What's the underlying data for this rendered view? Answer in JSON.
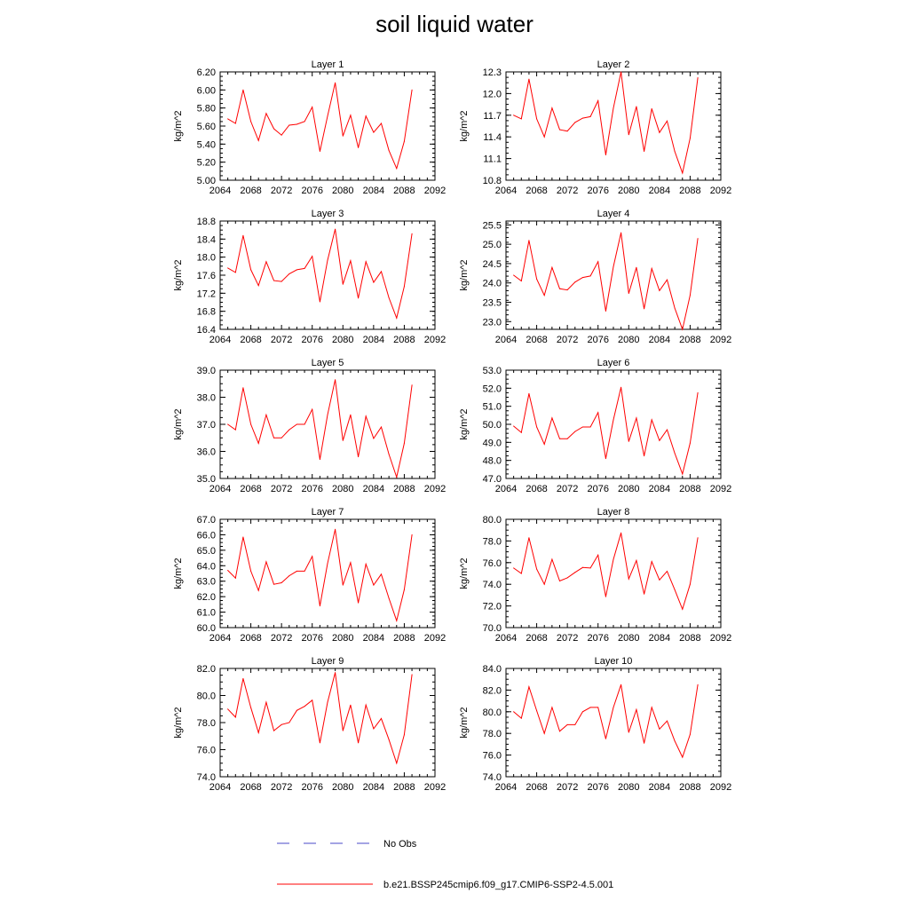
{
  "title": "soil liquid water",
  "legend": {
    "no_obs_label": "No Obs",
    "no_obs_color": "#4a4ac8",
    "model_label": "b.e21.BSSP245cmip6.f09_g17.CMIP6-SSP2-4.5.001",
    "model_color": "#ff0000"
  },
  "chart_data": [
    {
      "type": "line",
      "title": "Layer 1",
      "ylabel": "kg/m^2",
      "xlim": [
        2064,
        2092
      ],
      "xticks": [
        "2064",
        "2068",
        "2072",
        "2076",
        "2080",
        "2084",
        "2088",
        "2092"
      ],
      "ylim": [
        5.0,
        6.2
      ],
      "yticks": [
        "5.00",
        "5.20",
        "5.40",
        "5.60",
        "5.80",
        "6.00",
        "6.20"
      ],
      "x": [
        2065,
        2066,
        2067,
        2068,
        2069,
        2070,
        2071,
        2072,
        2073,
        2074,
        2075,
        2076,
        2077,
        2078,
        2079,
        2080,
        2081,
        2082,
        2083,
        2084,
        2085,
        2086,
        2087,
        2088,
        2089
      ],
      "series": [
        {
          "name": "b.e21.BSSP245cmip6.f09_g17.CMIP6-SSP2-4.5.001",
          "values": [
            5.68,
            5.63,
            6.0,
            5.65,
            5.44,
            5.74,
            5.57,
            5.5,
            5.61,
            5.62,
            5.65,
            5.81,
            5.32,
            5.71,
            6.08,
            5.49,
            5.72,
            5.36,
            5.71,
            5.53,
            5.63,
            5.33,
            5.13,
            5.43,
            6.0
          ]
        }
      ]
    },
    {
      "type": "line",
      "title": "Layer 2",
      "ylabel": "kg/m^2",
      "xlim": [
        2064,
        2092
      ],
      "xticks": [
        "2064",
        "2068",
        "2072",
        "2076",
        "2080",
        "2084",
        "2088",
        "2092"
      ],
      "ylim": [
        10.8,
        12.3
      ],
      "yticks": [
        "10.8",
        "11.1",
        "11.4",
        "11.7",
        "12.0",
        "12.3"
      ],
      "x": [
        2065,
        2066,
        2067,
        2068,
        2069,
        2070,
        2071,
        2072,
        2073,
        2074,
        2075,
        2076,
        2077,
        2078,
        2079,
        2080,
        2081,
        2082,
        2083,
        2084,
        2085,
        2086,
        2087,
        2088,
        2089
      ],
      "series": [
        {
          "name": "b.e21.BSSP245cmip6.f09_g17.CMIP6-SSP2-4.5.001",
          "values": [
            11.7,
            11.65,
            12.2,
            11.65,
            11.4,
            11.8,
            11.5,
            11.48,
            11.6,
            11.66,
            11.68,
            11.9,
            11.15,
            11.8,
            12.3,
            11.43,
            11.82,
            11.2,
            11.79,
            11.46,
            11.62,
            11.2,
            10.9,
            11.38,
            12.22
          ]
        }
      ]
    },
    {
      "type": "line",
      "title": "Layer 3",
      "ylabel": "kg/m^2",
      "xlim": [
        2064,
        2092
      ],
      "xticks": [
        "2064",
        "2068",
        "2072",
        "2076",
        "2080",
        "2084",
        "2088",
        "2092"
      ],
      "ylim": [
        16.4,
        18.8
      ],
      "yticks": [
        "16.4",
        "16.8",
        "17.2",
        "17.6",
        "18.0",
        "18.4",
        "18.8"
      ],
      "x": [
        2065,
        2066,
        2067,
        2068,
        2069,
        2070,
        2071,
        2072,
        2073,
        2074,
        2075,
        2076,
        2077,
        2078,
        2079,
        2080,
        2081,
        2082,
        2083,
        2084,
        2085,
        2086,
        2087,
        2088,
        2089
      ],
      "series": [
        {
          "name": "b.e21.BSSP245cmip6.f09_g17.CMIP6-SSP2-4.5.001",
          "values": [
            17.76,
            17.66,
            18.48,
            17.72,
            17.37,
            17.9,
            17.48,
            17.46,
            17.63,
            17.72,
            17.75,
            18.02,
            17.01,
            17.93,
            18.62,
            17.4,
            17.92,
            17.09,
            17.9,
            17.44,
            17.68,
            17.1,
            16.65,
            17.35,
            18.52
          ]
        }
      ]
    },
    {
      "type": "line",
      "title": "Layer 4",
      "ylabel": "kg/m^2",
      "xlim": [
        2064,
        2092
      ],
      "xticks": [
        "2064",
        "2068",
        "2072",
        "2076",
        "2080",
        "2084",
        "2088",
        "2092"
      ],
      "ylim": [
        22.8,
        25.6
      ],
      "yticks": [
        "23.0",
        "23.5",
        "24.0",
        "24.5",
        "25.0",
        "25.5"
      ],
      "x": [
        2065,
        2066,
        2067,
        2068,
        2069,
        2070,
        2071,
        2072,
        2073,
        2074,
        2075,
        2076,
        2077,
        2078,
        2079,
        2080,
        2081,
        2082,
        2083,
        2084,
        2085,
        2086,
        2087,
        2088,
        2089
      ],
      "series": [
        {
          "name": "b.e21.BSSP245cmip6.f09_g17.CMIP6-SSP2-4.5.001",
          "values": [
            24.2,
            24.05,
            25.1,
            24.1,
            23.68,
            24.4,
            23.85,
            23.82,
            24.02,
            24.14,
            24.18,
            24.55,
            23.27,
            24.42,
            25.3,
            23.73,
            24.4,
            23.33,
            24.37,
            23.8,
            24.08,
            23.35,
            22.8,
            23.68,
            25.15
          ]
        }
      ]
    },
    {
      "type": "line",
      "title": "Layer 5",
      "ylabel": "kg/m^2",
      "xlim": [
        2064,
        2092
      ],
      "xticks": [
        "2064",
        "2068",
        "2072",
        "2076",
        "2080",
        "2084",
        "2088",
        "2092"
      ],
      "ylim": [
        35.0,
        39.0
      ],
      "yticks": [
        "35.0",
        "36.0",
        "37.0",
        "38.0",
        "39.0"
      ],
      "x": [
        2065,
        2066,
        2067,
        2068,
        2069,
        2070,
        2071,
        2072,
        2073,
        2074,
        2075,
        2076,
        2077,
        2078,
        2079,
        2080,
        2081,
        2082,
        2083,
        2084,
        2085,
        2086,
        2087,
        2088,
        2089
      ],
      "series": [
        {
          "name": "b.e21.BSSP245cmip6.f09_g17.CMIP6-SSP2-4.5.001",
          "values": [
            37.0,
            36.8,
            38.35,
            37.0,
            36.3,
            37.35,
            36.5,
            36.5,
            36.8,
            37.0,
            37.0,
            37.55,
            35.7,
            37.35,
            38.65,
            36.4,
            37.35,
            35.8,
            37.3,
            36.48,
            36.9,
            35.9,
            35.05,
            36.3,
            38.45
          ]
        }
      ]
    },
    {
      "type": "line",
      "title": "Layer 6",
      "ylabel": "kg/m^2",
      "xlim": [
        2064,
        2092
      ],
      "xticks": [
        "2064",
        "2068",
        "2072",
        "2076",
        "2080",
        "2084",
        "2088",
        "2092"
      ],
      "ylim": [
        47.0,
        53.0
      ],
      "yticks": [
        "47.0",
        "48.0",
        "49.0",
        "50.0",
        "51.0",
        "52.0",
        "53.0"
      ],
      "x": [
        2065,
        2066,
        2067,
        2068,
        2069,
        2070,
        2071,
        2072,
        2073,
        2074,
        2075,
        2076,
        2077,
        2078,
        2079,
        2080,
        2081,
        2082,
        2083,
        2084,
        2085,
        2086,
        2087,
        2088,
        2089
      ],
      "series": [
        {
          "name": "b.e21.BSSP245cmip6.f09_g17.CMIP6-SSP2-4.5.001",
          "values": [
            49.9,
            49.55,
            51.7,
            49.85,
            48.9,
            50.35,
            49.2,
            49.2,
            49.6,
            49.85,
            49.85,
            50.65,
            48.1,
            50.25,
            52.05,
            49.05,
            50.35,
            48.25,
            50.25,
            49.1,
            49.7,
            48.4,
            47.25,
            48.95,
            51.75
          ]
        }
      ]
    },
    {
      "type": "line",
      "title": "Layer 7",
      "ylabel": "kg/m^2",
      "xlim": [
        2064,
        2092
      ],
      "xticks": [
        "2064",
        "2068",
        "2072",
        "2076",
        "2080",
        "2084",
        "2088",
        "2092"
      ],
      "ylim": [
        60.0,
        67.0
      ],
      "yticks": [
        "60.0",
        "61.0",
        "62.0",
        "63.0",
        "64.0",
        "65.0",
        "66.0",
        "67.0"
      ],
      "x": [
        2065,
        2066,
        2067,
        2068,
        2069,
        2070,
        2071,
        2072,
        2073,
        2074,
        2075,
        2076,
        2077,
        2078,
        2079,
        2080,
        2081,
        2082,
        2083,
        2084,
        2085,
        2086,
        2087,
        2088,
        2089
      ],
      "series": [
        {
          "name": "b.e21.BSSP245cmip6.f09_g17.CMIP6-SSP2-4.5.001",
          "values": [
            63.7,
            63.2,
            65.85,
            63.65,
            62.4,
            64.25,
            62.8,
            62.9,
            63.35,
            63.65,
            63.65,
            64.6,
            61.4,
            64.15,
            66.35,
            62.75,
            64.2,
            61.6,
            64.1,
            62.75,
            63.45,
            61.9,
            60.45,
            62.45,
            66.0
          ]
        }
      ]
    },
    {
      "type": "line",
      "title": "Layer 8",
      "ylabel": "kg/m^2",
      "xlim": [
        2064,
        2092
      ],
      "xticks": [
        "2064",
        "2068",
        "2072",
        "2076",
        "2080",
        "2084",
        "2088",
        "2092"
      ],
      "ylim": [
        70.0,
        80.0
      ],
      "yticks": [
        "70.0",
        "72.0",
        "74.0",
        "76.0",
        "78.0",
        "80.0"
      ],
      "x": [
        2065,
        2066,
        2067,
        2068,
        2069,
        2070,
        2071,
        2072,
        2073,
        2074,
        2075,
        2076,
        2077,
        2078,
        2079,
        2080,
        2081,
        2082,
        2083,
        2084,
        2085,
        2086,
        2087,
        2088,
        2089
      ],
      "series": [
        {
          "name": "b.e21.BSSP245cmip6.f09_g17.CMIP6-SSP2-4.5.001",
          "values": [
            75.5,
            75.0,
            78.3,
            75.4,
            74.0,
            76.3,
            74.3,
            74.6,
            75.1,
            75.55,
            75.5,
            76.7,
            72.85,
            76.3,
            78.75,
            74.5,
            76.2,
            73.1,
            76.1,
            74.4,
            75.2,
            73.5,
            71.7,
            74.0,
            78.3
          ]
        }
      ]
    },
    {
      "type": "line",
      "title": "Layer 9",
      "ylabel": "kg/m^2",
      "xlim": [
        2064,
        2092
      ],
      "xticks": [
        "2064",
        "2068",
        "2072",
        "2076",
        "2080",
        "2084",
        "2088",
        "2092"
      ],
      "ylim": [
        74.0,
        82.0
      ],
      "yticks": [
        "74.0",
        "76.0",
        "78.0",
        "80.0",
        "82.0"
      ],
      "x": [
        2065,
        2066,
        2067,
        2068,
        2069,
        2070,
        2071,
        2072,
        2073,
        2074,
        2075,
        2076,
        2077,
        2078,
        2079,
        2080,
        2081,
        2082,
        2083,
        2084,
        2085,
        2086,
        2087,
        2088,
        2089
      ],
      "series": [
        {
          "name": "b.e21.BSSP245cmip6.f09_g17.CMIP6-SSP2-4.5.001",
          "values": [
            79.0,
            78.4,
            81.25,
            79.1,
            77.25,
            79.5,
            77.4,
            77.85,
            78.0,
            78.9,
            79.2,
            79.65,
            76.5,
            79.5,
            81.7,
            77.4,
            79.3,
            76.5,
            79.3,
            77.55,
            78.3,
            76.75,
            75.0,
            77.1,
            81.55
          ]
        }
      ]
    },
    {
      "type": "line",
      "title": "Layer 10",
      "ylabel": "kg/m^2",
      "xlim": [
        2064,
        2092
      ],
      "xticks": [
        "2064",
        "2068",
        "2072",
        "2076",
        "2080",
        "2084",
        "2088",
        "2092"
      ],
      "ylim": [
        74.0,
        84.0
      ],
      "yticks": [
        "74.0",
        "76.0",
        "78.0",
        "80.0",
        "82.0",
        "84.0"
      ],
      "x": [
        2065,
        2066,
        2067,
        2068,
        2069,
        2070,
        2071,
        2072,
        2073,
        2074,
        2075,
        2076,
        2077,
        2078,
        2079,
        2080,
        2081,
        2082,
        2083,
        2084,
        2085,
        2086,
        2087,
        2088,
        2089
      ],
      "series": [
        {
          "name": "b.e21.BSSP245cmip6.f09_g17.CMIP6-SSP2-4.5.001",
          "values": [
            80.0,
            79.4,
            82.3,
            80.1,
            78.0,
            80.4,
            78.2,
            78.8,
            78.8,
            80.0,
            80.4,
            80.4,
            77.5,
            80.4,
            82.5,
            78.1,
            80.2,
            77.1,
            80.4,
            78.4,
            79.15,
            77.3,
            75.8,
            77.9,
            82.5
          ]
        }
      ]
    }
  ]
}
